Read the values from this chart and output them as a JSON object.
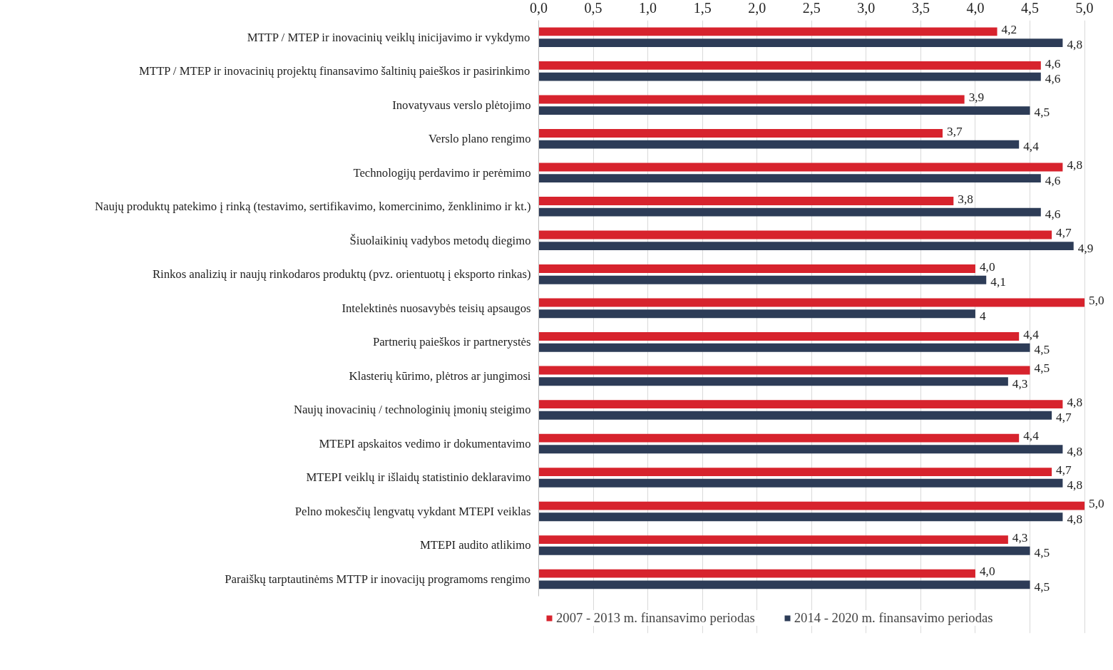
{
  "chart_data": {
    "type": "bar",
    "orientation": "horizontal",
    "categories": [
      "MTTP / MTEP ir inovacinių veiklų inicijavimo ir vykdymo",
      "MTTP / MTEP ir inovacinių projektų finansavimo šaltinių paieškos ir pasirinkimo",
      "Inovatyvaus verslo plėtojimo",
      "Verslo plano rengimo",
      "Technologijų perdavimo ir perėmimo",
      "Naujų produktų patekimo į rinką (testavimo, sertifikavimo, komercinimo, ženklinimo ir kt.)",
      "Šiuolaikinių vadybos metodų diegimo",
      "Rinkos analizių ir naujų rinkodaros produktų (pvz. orientuotų į eksporto rinkas)",
      "Intelektinės nuosavybės teisių apsaugos",
      "Partnerių paieškos ir partnerystės",
      "Klasterių kūrimo, plėtros ar jungimosi",
      "Naujų inovacinių / technologinių įmonių steigimo",
      "MTEPI apskaitos vedimo ir dokumentavimo",
      "MTEPI veiklų ir išlaidų statistinio deklaravimo",
      "Pelno mokesčių lengvatų vykdant MTEPI veiklas",
      "MTEPI audito atlikimo",
      "Paraiškų tarptautinėms MTTP ir inovacijų programoms rengimo"
    ],
    "series": [
      {
        "name": "2007 - 2013 m. finansavimo periodas",
        "color": "#d7232d",
        "values": [
          4.2,
          4.6,
          3.9,
          3.7,
          4.8,
          3.8,
          4.7,
          4.0,
          5.0,
          4.4,
          4.5,
          4.8,
          4.4,
          4.7,
          5.0,
          4.3,
          4.0
        ],
        "value_labels": [
          "4,2",
          "4,6",
          "3,9",
          "3,7",
          "4,8",
          "3,8",
          "4,7",
          "4,0",
          "5,0",
          "4,4",
          "4,5",
          "4,8",
          "4,4",
          "4,7",
          "5,0",
          "4,3",
          "4,0"
        ]
      },
      {
        "name": "2014 - 2020 m. finansavimo periodas",
        "color": "#2d3c57",
        "values": [
          4.8,
          4.6,
          4.5,
          4.4,
          4.6,
          4.6,
          4.9,
          4.1,
          4.0,
          4.5,
          4.3,
          4.7,
          4.8,
          4.8,
          4.8,
          4.5,
          4.5
        ],
        "value_labels": [
          "4,8",
          "4,6",
          "4,5",
          "4,4",
          "4,6",
          "4,6",
          "4,9",
          "4,1",
          "4",
          "4,5",
          "4,3",
          "4,7",
          "4,8",
          "4,8",
          "4,8",
          "4,5",
          "4,5"
        ]
      }
    ],
    "xlim": [
      0,
      5
    ],
    "xticks": [
      {
        "value": 0,
        "label": "0,0"
      },
      {
        "value": 0.5,
        "label": "0,5"
      },
      {
        "value": 1,
        "label": "1,0"
      },
      {
        "value": 1.5,
        "label": "1,5"
      },
      {
        "value": 2,
        "label": "2,0"
      },
      {
        "value": 2.5,
        "label": "2,5"
      },
      {
        "value": 3,
        "label": "3,0"
      },
      {
        "value": 3.5,
        "label": "3,5"
      },
      {
        "value": 4,
        "label": "4,0"
      },
      {
        "value": 4.5,
        "label": "4,5"
      },
      {
        "value": 5,
        "label": "5,0"
      }
    ],
    "grid": "x",
    "legend": "bottom"
  }
}
